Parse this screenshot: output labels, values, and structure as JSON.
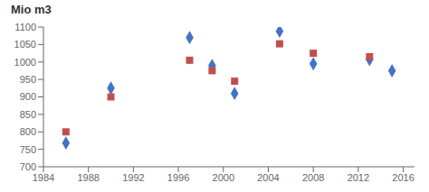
{
  "chart_data": {
    "type": "scatter",
    "title": "Mio m3",
    "xlim": [
      1984,
      2017
    ],
    "ylim": [
      700,
      1100
    ],
    "xticks": [
      1984,
      1988,
      1992,
      1996,
      2000,
      2004,
      2008,
      2012,
      2016
    ],
    "yticks": [
      700,
      750,
      800,
      850,
      900,
      950,
      1000,
      1050,
      1100
    ],
    "grid": false,
    "series": [
      {
        "color": "#4472C4",
        "marker": "diamond",
        "x": [
          1986,
          1990,
          1997,
          1999,
          2001,
          2005,
          2008,
          2013,
          2015
        ],
        "values": [
          768,
          925,
          1070,
          990,
          910,
          1088,
          995,
          1007,
          975
        ]
      },
      {
        "color": "#C0504D",
        "marker": "square",
        "x": [
          1986,
          1990,
          1997,
          1999,
          2001,
          2005,
          2008,
          2013
        ],
        "values": [
          800,
          900,
          1005,
          975,
          945,
          1052,
          1025,
          1015
        ]
      }
    ]
  }
}
